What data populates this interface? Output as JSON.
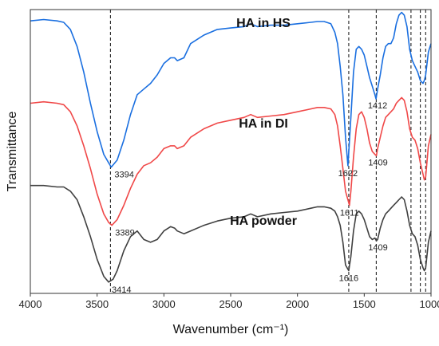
{
  "chart_data": {
    "type": "line",
    "title": "",
    "xlabel": "Wavenumber (cm⁻¹)",
    "ylabel": "Transmittance",
    "xlim": [
      4000,
      1000
    ],
    "x_reversed": true,
    "x_ticks": [
      4000,
      3500,
      3000,
      2500,
      2000,
      1500,
      1000
    ],
    "y_ticks_shown": false,
    "grid": false,
    "ylim": [
      0,
      100
    ],
    "colors": {
      "HA in HS": "#1a6fe0",
      "HA in DI": "#f04848",
      "HA powder": "#404040",
      "guide": "#222222"
    },
    "series": [
      {
        "name": "HA in HS",
        "color": "#1a6fe0",
        "x": [
          4000,
          3900,
          3800,
          3750,
          3700,
          3650,
          3600,
          3550,
          3500,
          3450,
          3414,
          3394,
          3350,
          3300,
          3250,
          3200,
          3150,
          3100,
          3050,
          3000,
          2950,
          2920,
          2900,
          2850,
          2800,
          2700,
          2600,
          2500,
          2400,
          2350,
          2300,
          2200,
          2100,
          2000,
          1900,
          1850,
          1800,
          1750,
          1720,
          1700,
          1680,
          1660,
          1640,
          1622,
          1600,
          1580,
          1560,
          1540,
          1520,
          1500,
          1480,
          1460,
          1440,
          1420,
          1412,
          1400,
          1380,
          1360,
          1340,
          1320,
          1300,
          1280,
          1260,
          1240,
          1220,
          1200,
          1180,
          1160,
          1140,
          1120,
          1100,
          1080,
          1060,
          1050,
          1040,
          1020,
          1000
        ],
        "y": [
          96,
          96.5,
          96,
          95.5,
          93,
          87,
          78,
          67,
          57,
          49,
          46,
          44.5,
          47,
          54,
          63,
          70,
          72,
          74,
          77,
          81,
          83,
          83,
          82,
          83,
          88,
          91,
          93,
          93.5,
          94,
          95,
          94,
          94.5,
          94.5,
          95,
          95.5,
          95.8,
          95.8,
          95,
          92,
          88,
          80,
          70,
          55,
          45,
          62,
          78,
          86,
          87,
          86,
          84,
          80,
          76,
          73,
          70,
          68.5,
          72,
          77,
          83,
          87,
          88,
          88,
          90,
          95,
          98,
          99,
          98,
          94,
          86,
          82,
          80,
          78,
          75,
          74,
          75,
          77,
          85,
          88
        ]
      },
      {
        "name": "HA in DI",
        "color": "#f04848",
        "x": [
          4000,
          3900,
          3800,
          3750,
          3700,
          3650,
          3600,
          3550,
          3500,
          3450,
          3414,
          3389,
          3350,
          3300,
          3250,
          3200,
          3150,
          3100,
          3050,
          3000,
          2950,
          2920,
          2900,
          2850,
          2800,
          2700,
          2600,
          2500,
          2400,
          2350,
          2300,
          2200,
          2100,
          2000,
          1900,
          1850,
          1800,
          1750,
          1720,
          1700,
          1680,
          1660,
          1640,
          1611,
          1600,
          1580,
          1560,
          1540,
          1520,
          1500,
          1480,
          1460,
          1440,
          1420,
          1409,
          1400,
          1380,
          1360,
          1340,
          1320,
          1300,
          1280,
          1260,
          1240,
          1220,
          1200,
          1180,
          1160,
          1140,
          1120,
          1100,
          1080,
          1060,
          1050,
          1040,
          1020,
          1000
        ],
        "y": [
          67,
          67.5,
          67,
          66.5,
          64,
          59,
          52,
          44,
          35,
          28,
          25,
          24,
          26,
          31,
          37,
          42,
          45,
          46,
          48,
          51,
          52,
          52,
          51,
          52,
          55,
          58,
          60,
          61,
          62,
          63,
          62,
          62.5,
          63,
          64,
          65,
          65.5,
          65.5,
          65,
          63,
          59,
          52,
          44,
          36,
          31,
          36,
          48,
          58,
          63,
          64,
          62,
          58,
          53,
          50,
          49,
          48.5,
          51,
          55,
          59,
          62,
          63,
          64,
          65,
          67,
          68,
          69,
          68,
          64,
          58,
          55,
          54,
          51,
          46,
          42,
          40,
          41,
          52,
          56
        ]
      },
      {
        "name": "HA powder",
        "color": "#404040",
        "x": [
          4000,
          3900,
          3800,
          3750,
          3700,
          3650,
          3600,
          3550,
          3500,
          3450,
          3414,
          3380,
          3350,
          3300,
          3250,
          3200,
          3150,
          3100,
          3050,
          3000,
          2950,
          2920,
          2900,
          2850,
          2800,
          2700,
          2600,
          2500,
          2400,
          2350,
          2300,
          2200,
          2100,
          2000,
          1900,
          1850,
          1800,
          1750,
          1720,
          1700,
          1680,
          1660,
          1640,
          1616,
          1600,
          1580,
          1560,
          1540,
          1520,
          1500,
          1480,
          1460,
          1440,
          1420,
          1409,
          1400,
          1380,
          1360,
          1340,
          1320,
          1300,
          1280,
          1260,
          1240,
          1220,
          1200,
          1180,
          1160,
          1140,
          1120,
          1100,
          1080,
          1060,
          1050,
          1040,
          1020,
          1000
        ],
        "y": [
          38,
          38,
          37.5,
          37.5,
          36,
          33,
          27,
          20,
          12,
          6,
          4,
          5,
          8,
          15,
          20,
          22,
          19,
          18,
          19,
          22,
          23.5,
          23,
          22,
          21,
          22,
          24,
          25.5,
          26.5,
          27,
          28,
          27,
          28,
          28.5,
          29,
          30,
          30.5,
          30.5,
          30,
          29,
          27,
          24,
          18,
          10,
          8,
          13,
          22,
          28,
          29,
          28,
          26,
          23,
          20,
          19,
          19.5,
          18.5,
          19,
          23,
          26,
          28,
          29,
          30,
          31,
          32,
          33,
          34,
          33,
          29,
          24,
          21,
          20,
          17,
          12,
          9,
          8,
          9,
          18,
          22
        ]
      }
    ],
    "series_labels": [
      "HA in HS",
      "HA in DI",
      "HA powder"
    ],
    "peak_labels": [
      {
        "series": "HA in HS",
        "x": 3394,
        "text": "3394"
      },
      {
        "series": "HA in HS",
        "x": 1622,
        "text": "1622"
      },
      {
        "series": "HA in HS",
        "x": 1412,
        "text": "1412"
      },
      {
        "series": "HA in DI",
        "x": 3389,
        "text": "3389"
      },
      {
        "series": "HA in DI",
        "x": 1611,
        "text": "1611"
      },
      {
        "series": "HA in DI",
        "x": 1409,
        "text": "1409"
      },
      {
        "series": "HA powder",
        "x": 3414,
        "text": "3414"
      },
      {
        "series": "HA powder",
        "x": 1616,
        "text": "1616"
      },
      {
        "series": "HA powder",
        "x": 1409,
        "text": "1409"
      }
    ],
    "guide_lines_x": [
      3400,
      1616,
      1410,
      1150,
      1080,
      1040
    ]
  }
}
